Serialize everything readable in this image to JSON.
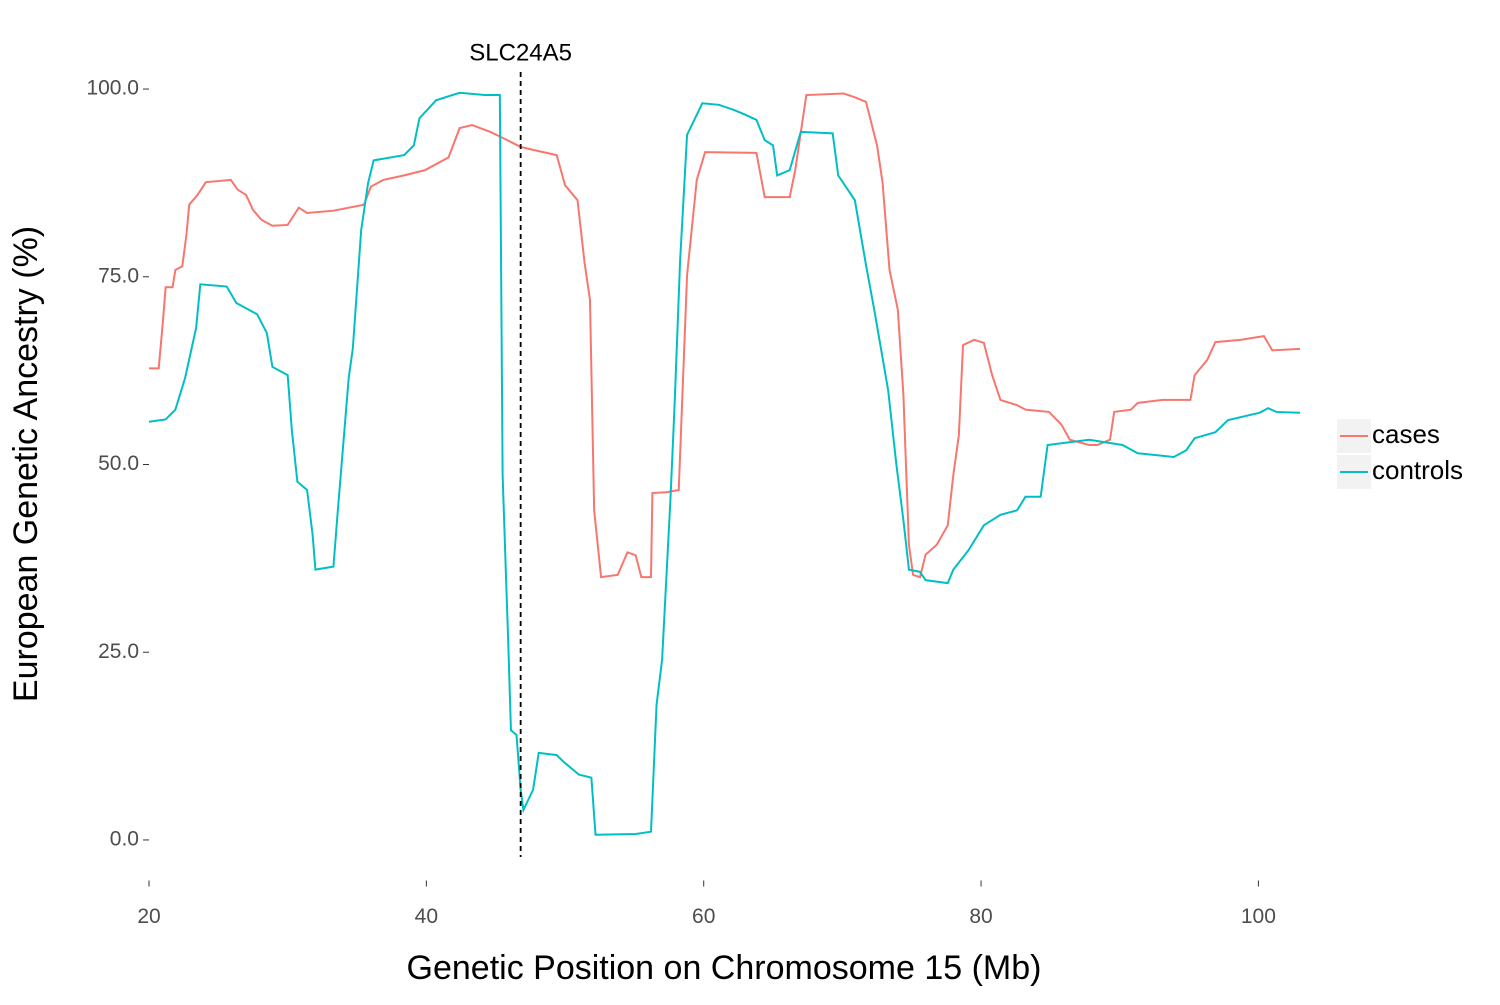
{
  "chart_data": {
    "type": "line",
    "xlabel": "Genetic Position on Chromosome 15 (Mb)",
    "ylabel": "European Genetic Ancestry (%)",
    "xlim": [
      20,
      103
    ],
    "xticks": [
      20,
      40,
      60,
      80,
      100
    ],
    "ylim": [
      -5,
      105
    ],
    "yticks": [
      {
        "value": 0,
        "label": "0.0"
      },
      {
        "value": 25,
        "label": "25.0"
      },
      {
        "value": 50,
        "label": "50.0"
      },
      {
        "value": 75,
        "label": "75.0"
      },
      {
        "value": 100,
        "label": "100.0"
      }
    ],
    "grid": false,
    "legend": "right",
    "annotations": [
      {
        "x": 46.8,
        "label": "SLC24A5"
      }
    ],
    "series": [
      {
        "name": "cases",
        "color": "#F8766D",
        "x": [
          20.0,
          20.7,
          21.0,
          21.2,
          21.7,
          21.9,
          22.4,
          22.7,
          22.9,
          23.5,
          24.1,
          25.9,
          26.4,
          27.0,
          27.5,
          28.1,
          28.9,
          30.0,
          30.8,
          31.4,
          33.3,
          35.5,
          36.0,
          36.9,
          38.4,
          39.9,
          41.6,
          42.4,
          43.3,
          44.6,
          45.5,
          46.8,
          47.7,
          49.4,
          50.0,
          50.9,
          51.4,
          51.8,
          52.1,
          52.6,
          53.8,
          54.5,
          55.1,
          55.5,
          56.2,
          56.3,
          57.3,
          58.2,
          58.8,
          59.5,
          60.1,
          63.8,
          64.4,
          66.2,
          66.6,
          67.4,
          70.1,
          70.9,
          71.7,
          72.5,
          72.9,
          73.4,
          74.0,
          74.4,
          74.8,
          75.1,
          75.6,
          76.0,
          76.8,
          77.6,
          78.0,
          78.4,
          78.7,
          79.5,
          80.2,
          80.8,
          81.4,
          82.6,
          83.2,
          84.9,
          85.8,
          86.4,
          87.8,
          88.4,
          89.3,
          89.6,
          90.8,
          91.3,
          93.1,
          95.1,
          95.4,
          96.3,
          96.9,
          98.7,
          100.4,
          101.0,
          103.0
        ],
        "values": [
          62.8,
          62.8,
          69,
          73.6,
          73.6,
          75.9,
          76.4,
          80.6,
          84.6,
          85.9,
          87.6,
          87.9,
          86.6,
          85.9,
          83.9,
          82.6,
          81.8,
          81.9,
          84.2,
          83.5,
          83.8,
          84.6,
          87,
          87.9,
          88.5,
          89.2,
          90.9,
          94.8,
          95.2,
          94.3,
          93.5,
          92.3,
          91.9,
          91.2,
          87.2,
          85.2,
          77,
          71.9,
          43.9,
          35,
          35.3,
          38.3,
          37.9,
          35,
          35,
          46.2,
          46.3,
          46.6,
          75.2,
          87.9,
          91.6,
          91.5,
          85.6,
          85.6,
          89.2,
          99.2,
          99.4,
          98.9,
          98.3,
          92.5,
          87.5,
          75.9,
          70.6,
          59.3,
          39.3,
          35.3,
          35,
          38,
          39.3,
          41.9,
          48.6,
          53.9,
          65.9,
          66.6,
          66.2,
          61.9,
          58.6,
          57.9,
          57.3,
          57,
          55.3,
          53.3,
          52.6,
          52.6,
          53.3,
          57,
          57.3,
          58.2,
          58.6,
          58.6,
          61.9,
          63.9,
          66.3,
          66.6,
          67.1,
          65.2,
          65.4
        ]
      },
      {
        "name": "controls",
        "color": "#00BFC4",
        "x": [
          20.0,
          21.2,
          21.9,
          22.6,
          23.4,
          23.7,
          25.6,
          26.3,
          27.8,
          28.5,
          28.9,
          30.0,
          30.3,
          30.7,
          31.4,
          31.8,
          32.0,
          33.3,
          33.6,
          34.4,
          34.7,
          35.3,
          35.8,
          36.2,
          38.4,
          39.1,
          39.5,
          40.7,
          42.4,
          44.2,
          45.3,
          45.5,
          45.8,
          45.9,
          46.1,
          46.5,
          46.8,
          47.0,
          47.7,
          48.1,
          49.4,
          49.9,
          51.0,
          51.9,
          52.2,
          55.1,
          56.2,
          56.6,
          57.0,
          57.6,
          57.9,
          58.3,
          58.8,
          59.9,
          61.1,
          62.2,
          63.1,
          63.8,
          64.4,
          65.0,
          65.3,
          66.2,
          67.0,
          69.3,
          69.7,
          70.9,
          71.7,
          72.3,
          73.3,
          73.9,
          74.4,
          74.8,
          75.6,
          76.0,
          77.6,
          78.0,
          79.1,
          80.2,
          81.4,
          82.6,
          83.2,
          84.3,
          84.8,
          87.8,
          90.2,
          91.3,
          93.9,
          94.8,
          95.4,
          96.9,
          97.8,
          100.1,
          100.7,
          101.3,
          103.0
        ],
        "values": [
          55.7,
          56,
          57.3,
          61.5,
          68.2,
          74,
          73.7,
          71.5,
          70,
          67.5,
          63,
          61.9,
          54.6,
          47.7,
          46.6,
          40.6,
          36,
          36.4,
          43.5,
          61.5,
          65.5,
          81.2,
          87.5,
          90.5,
          91.2,
          92.5,
          96.1,
          98.5,
          99.5,
          99.2,
          99.2,
          48.6,
          32,
          26.6,
          14.6,
          14,
          6.7,
          4,
          6.7,
          11.6,
          11.3,
          10.4,
          8.7,
          8.3,
          0.7,
          0.8,
          1.1,
          18,
          24,
          45.3,
          57.9,
          77.2,
          93.9,
          98.1,
          97.9,
          97.2,
          96.5,
          95.9,
          93.2,
          92.5,
          88.5,
          89.2,
          94.3,
          94.1,
          88.5,
          85.2,
          76.6,
          70.6,
          59.9,
          49.9,
          42.6,
          36,
          35.7,
          34.6,
          34.2,
          36,
          38.6,
          41.9,
          43.3,
          43.9,
          45.7,
          45.7,
          52.6,
          53.3,
          52.6,
          51.5,
          51,
          51.9,
          53.5,
          54.3,
          55.9,
          56.9,
          57.5,
          57,
          56.9
        ]
      }
    ]
  }
}
